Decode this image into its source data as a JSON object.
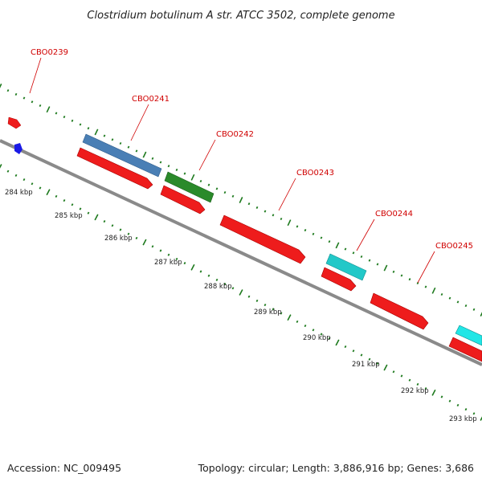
{
  "title": "Clostridium botulinum A str. ATCC 3502, complete genome",
  "footer": {
    "accession": "Accession: NC_009495",
    "summary": "Topology: circular; Length: 3,886,916 bp; Genes: 3,686"
  },
  "colors": {
    "forward_cds_palette": "#4a7fb5",
    "forward_green": "#2a8a2a",
    "forward_cyan": "#22c8c8",
    "reverse_cds": "#ee1c1c",
    "backbone": "#888888",
    "tick_marks": "#1e7a1e",
    "label_text": "#d00000",
    "small_feature_blue": "#1a1ae6"
  },
  "genes": [
    {
      "label": "CBO0239"
    },
    {
      "label": "CBO0241"
    },
    {
      "label": "CBO0242"
    },
    {
      "label": "CBO0243"
    },
    {
      "label": "CBO0244"
    },
    {
      "label": "CBO0245"
    }
  ],
  "ticks": [
    "284 kbp",
    "285 kbp",
    "286 kbp",
    "287 kbp",
    "288 kbp",
    "289 kbp",
    "290 kbp",
    "291 kbp",
    "292 kbp",
    "293 kbp"
  ]
}
